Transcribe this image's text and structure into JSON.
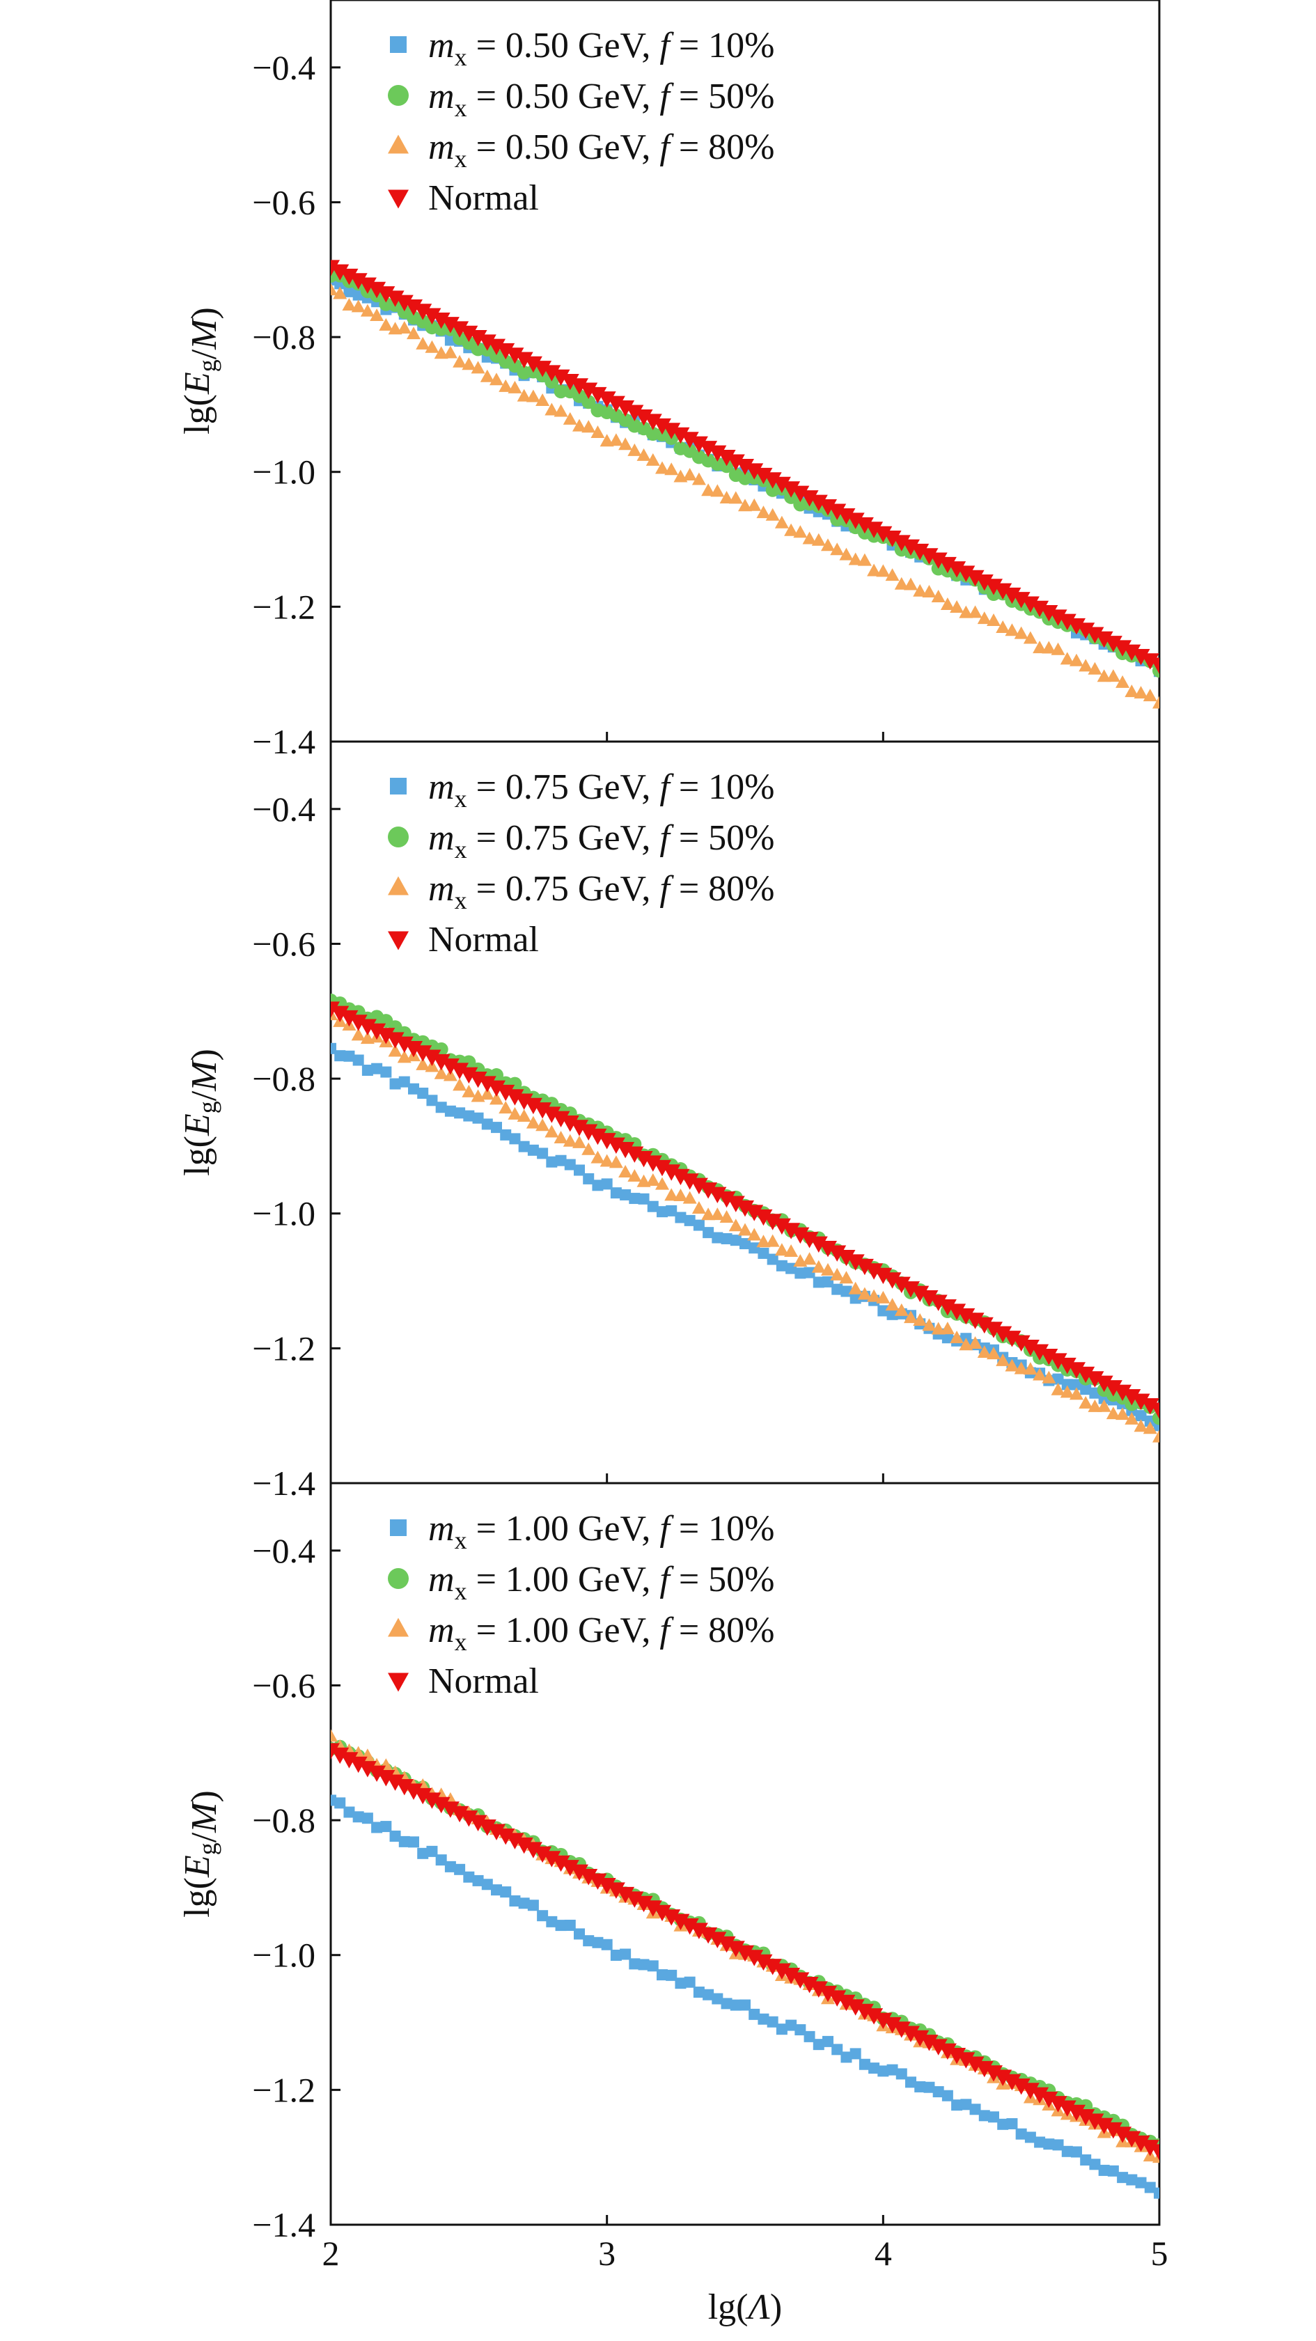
{
  "xlabel": "lg(Λ)",
  "ylabel": "lg(E_g/M)",
  "colors": {
    "f10": "#5aa8e0",
    "f50": "#6cc95a",
    "f80": "#f5a657",
    "normal": "#e81010"
  },
  "chart_data": [
    {
      "type": "scatter",
      "xlim": [
        2,
        5
      ],
      "ylim": [
        -1.4,
        -0.3
      ],
      "xticks": [
        2,
        3,
        4,
        5
      ],
      "yticks": [
        -0.4,
        -0.6,
        -0.8,
        -1.0,
        -1.2,
        -1.4
      ],
      "ytick_labels": [
        "−0.4",
        "−0.6",
        "−0.8",
        "−1.0",
        "−1.2",
        "−1.4"
      ],
      "xtick_labels": [
        "",
        "",
        "",
        ""
      ],
      "xlabel": "",
      "ylabel": "lg(E_g/M)",
      "legend_position": "top-left",
      "series": [
        {
          "key": "f10",
          "marker": "square",
          "name_mass": "0.50",
          "name_frac": "10%",
          "x": [
            2.0,
            3.0,
            4.0,
            5.0
          ],
          "y": [
            -0.715,
            -0.91,
            -1.1,
            -1.29
          ]
        },
        {
          "key": "f50",
          "marker": "circle",
          "name_mass": "0.50",
          "name_frac": "50%",
          "x": [
            2.0,
            3.0,
            4.0,
            5.0
          ],
          "y": [
            -0.705,
            -0.91,
            -1.1,
            -1.29
          ]
        },
        {
          "key": "f80",
          "marker": "triangle-up",
          "name_mass": "0.50",
          "name_frac": "80%",
          "x": [
            2.0,
            3.0,
            4.0,
            5.0
          ],
          "y": [
            -0.735,
            -0.95,
            -1.15,
            -1.34
          ]
        },
        {
          "key": "normal",
          "marker": "triangle-down",
          "name": "Normal",
          "x": [
            2.0,
            3.0,
            4.0,
            5.0
          ],
          "y": [
            -0.695,
            -0.89,
            -1.09,
            -1.285
          ]
        }
      ]
    },
    {
      "type": "scatter",
      "xlim": [
        2,
        5
      ],
      "ylim": [
        -1.4,
        -0.3
      ],
      "xticks": [
        2,
        3,
        4,
        5
      ],
      "yticks": [
        -0.4,
        -0.6,
        -0.8,
        -1.0,
        -1.2,
        -1.4
      ],
      "ytick_labels": [
        "−0.4",
        "−0.6",
        "−0.8",
        "−1.0",
        "−1.2",
        "−1.4"
      ],
      "xtick_labels": [
        "",
        "",
        "",
        ""
      ],
      "xlabel": "",
      "ylabel": "lg(E_g/M)",
      "legend_position": "top-left",
      "series": [
        {
          "key": "f10",
          "marker": "square",
          "name_mass": "0.75",
          "name_frac": "10%",
          "x": [
            2.0,
            3.0,
            4.0,
            5.0
          ],
          "y": [
            -0.755,
            -0.96,
            -1.14,
            -1.31
          ]
        },
        {
          "key": "f50",
          "marker": "circle",
          "name_mass": "0.75",
          "name_frac": "50%",
          "x": [
            2.0,
            3.0,
            4.0,
            5.0
          ],
          "y": [
            -0.68,
            -0.88,
            -1.09,
            -1.3
          ]
        },
        {
          "key": "f80",
          "marker": "triangle-up",
          "name_mass": "0.75",
          "name_frac": "80%",
          "x": [
            2.0,
            3.0,
            4.0,
            5.0
          ],
          "y": [
            -0.71,
            -0.92,
            -1.13,
            -1.33
          ]
        },
        {
          "key": "normal",
          "marker": "triangle-down",
          "name": "Normal",
          "x": [
            2.0,
            3.0,
            4.0,
            5.0
          ],
          "y": [
            -0.695,
            -0.89,
            -1.09,
            -1.29
          ]
        }
      ]
    },
    {
      "type": "scatter",
      "xlim": [
        2,
        5
      ],
      "ylim": [
        -1.4,
        -0.3
      ],
      "xticks": [
        2,
        3,
        4,
        5
      ],
      "yticks": [
        -0.4,
        -0.6,
        -0.8,
        -1.0,
        -1.2,
        -1.4
      ],
      "ytick_labels": [
        "−0.4",
        "−0.6",
        "−0.8",
        "−1.0",
        "−1.2",
        "−1.4"
      ],
      "xtick_labels": [
        "2",
        "3",
        "4",
        "5"
      ],
      "xlabel": "lg(Λ)",
      "ylabel": "lg(E_g/M)",
      "legend_position": "top-left",
      "series": [
        {
          "key": "f10",
          "marker": "square",
          "name_mass": "1.00",
          "name_frac": "10%",
          "x": [
            2.0,
            3.0,
            4.0,
            5.0
          ],
          "y": [
            -0.77,
            -0.99,
            -1.17,
            -1.35
          ]
        },
        {
          "key": "f50",
          "marker": "circle",
          "name_mass": "1.00",
          "name_frac": "50%",
          "x": [
            2.0,
            3.0,
            4.0,
            5.0
          ],
          "y": [
            -0.69,
            -0.89,
            -1.09,
            -1.28
          ]
        },
        {
          "key": "f80",
          "marker": "triangle-up",
          "name_mass": "1.00",
          "name_frac": "80%",
          "x": [
            2.0,
            3.0,
            4.0,
            5.0
          ],
          "y": [
            -0.68,
            -0.9,
            -1.1,
            -1.3
          ]
        },
        {
          "key": "normal",
          "marker": "triangle-down",
          "name": "Normal",
          "x": [
            2.0,
            3.0,
            4.0,
            5.0
          ],
          "y": [
            -0.695,
            -0.895,
            -1.095,
            -1.29
          ]
        }
      ]
    }
  ]
}
